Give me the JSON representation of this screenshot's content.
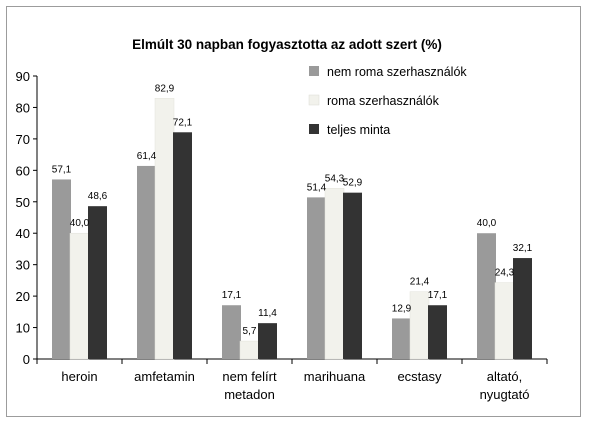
{
  "chart_data": {
    "type": "bar",
    "title": "Elmúlt 30 napban fogyasztotta az adott szert (%)",
    "xlabel": "",
    "ylabel": "",
    "ylim": [
      0,
      90
    ],
    "yticks": [
      0,
      10,
      20,
      30,
      40,
      50,
      60,
      70,
      80,
      90
    ],
    "grid": false,
    "legend_position": "top-right",
    "categories": [
      [
        "heroin"
      ],
      [
        "amfetamin"
      ],
      [
        "nem felírt",
        "metadon"
      ],
      [
        "marihuana"
      ],
      [
        "ecstasy"
      ],
      [
        "altató,",
        "nyugtató"
      ]
    ],
    "series": [
      {
        "name": "nem roma szerhasználók",
        "color": "#9a9a9a",
        "values": [
          57.1,
          61.4,
          17.1,
          51.4,
          12.9,
          40.0
        ],
        "labels": [
          "57,1",
          "61,4",
          "17,1",
          "51,4",
          "12,9",
          "40,0"
        ]
      },
      {
        "name": "roma szerhasználók",
        "color": "#f2f2ec",
        "values": [
          40.0,
          82.9,
          5.7,
          54.3,
          21.4,
          24.3
        ],
        "labels": [
          "40,0",
          "82,9",
          "5,7",
          "54,3",
          "21,4",
          "24,3"
        ]
      },
      {
        "name": "teljes minta",
        "color": "#333333",
        "values": [
          48.6,
          72.1,
          11.4,
          52.9,
          17.1,
          32.1
        ],
        "labels": [
          "48,6",
          "72,1",
          "11,4",
          "52,9",
          "17,1",
          "32,1"
        ]
      }
    ]
  }
}
